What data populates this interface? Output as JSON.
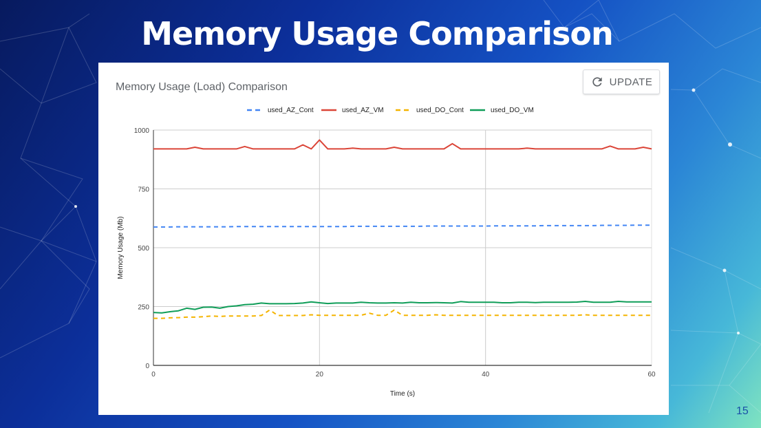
{
  "slide": {
    "title": "Memory Usage Comparison",
    "page_number": "15"
  },
  "card": {
    "update_label": "UPDATE",
    "update_icon": "refresh-icon"
  },
  "chart_data": {
    "type": "line",
    "title": "Memory Usage (Load) Comparison",
    "xlabel": "Time (s)",
    "ylabel": "Memory Usage (Mb)",
    "xlim": [
      0,
      60
    ],
    "ylim": [
      0,
      1000
    ],
    "xticks": [
      0,
      20,
      40,
      60
    ],
    "yticks": [
      0,
      250,
      500,
      750,
      1000
    ],
    "grid": true,
    "legend": "top",
    "x": [
      0,
      1,
      2,
      3,
      4,
      5,
      6,
      7,
      8,
      9,
      10,
      11,
      12,
      13,
      14,
      15,
      16,
      17,
      18,
      19,
      20,
      21,
      22,
      23,
      24,
      25,
      26,
      27,
      28,
      29,
      30,
      31,
      32,
      33,
      34,
      35,
      36,
      37,
      38,
      39,
      40,
      41,
      42,
      43,
      44,
      45,
      46,
      47,
      48,
      49,
      50,
      51,
      52,
      53,
      54,
      55,
      56,
      57,
      58,
      59,
      60
    ],
    "series": [
      {
        "name": "used_AZ_Cont",
        "color": "#4285f4",
        "dashed": true,
        "values": [
          588,
          588,
          588,
          589,
          589,
          589,
          589,
          589,
          589,
          589,
          590,
          590,
          590,
          590,
          590,
          590,
          590,
          590,
          590,
          590,
          590,
          590,
          590,
          590,
          591,
          591,
          591,
          591,
          591,
          591,
          591,
          591,
          591,
          592,
          592,
          592,
          592,
          592,
          592,
          592,
          592,
          593,
          593,
          593,
          593,
          593,
          593,
          594,
          594,
          594,
          594,
          594,
          594,
          594,
          595,
          595,
          595,
          595,
          596,
          596,
          596
        ]
      },
      {
        "name": "used_AZ_VM",
        "color": "#db4437",
        "dashed": false,
        "values": [
          920,
          920,
          920,
          920,
          920,
          927,
          920,
          920,
          920,
          920,
          920,
          930,
          920,
          920,
          920,
          920,
          920,
          920,
          937,
          920,
          958,
          920,
          920,
          920,
          923,
          920,
          920,
          920,
          920,
          927,
          920,
          920,
          920,
          920,
          920,
          920,
          942,
          920,
          920,
          920,
          920,
          920,
          920,
          920,
          920,
          923,
          920,
          920,
          920,
          920,
          920,
          920,
          920,
          920,
          920,
          932,
          920,
          920,
          920,
          927,
          920
        ]
      },
      {
        "name": "used_DO_Cont",
        "color": "#f4b400",
        "dashed": true,
        "values": [
          200,
          200,
          202,
          203,
          205,
          205,
          207,
          210,
          208,
          210,
          210,
          210,
          210,
          212,
          235,
          212,
          212,
          212,
          212,
          215,
          213,
          213,
          213,
          213,
          213,
          213,
          222,
          213,
          213,
          235,
          213,
          213,
          213,
          213,
          215,
          213,
          213,
          213,
          213,
          213,
          213,
          213,
          213,
          213,
          213,
          213,
          213,
          213,
          213,
          213,
          213,
          213,
          215,
          213,
          213,
          213,
          213,
          213,
          213,
          213,
          213
        ]
      },
      {
        "name": "used_DO_VM",
        "color": "#0f9d58",
        "dashed": false,
        "values": [
          225,
          223,
          228,
          232,
          243,
          238,
          247,
          248,
          243,
          250,
          253,
          258,
          260,
          265,
          262,
          262,
          262,
          263,
          265,
          270,
          266,
          263,
          265,
          265,
          265,
          268,
          266,
          265,
          265,
          266,
          265,
          268,
          266,
          266,
          267,
          266,
          265,
          271,
          268,
          268,
          268,
          268,
          266,
          266,
          268,
          268,
          267,
          268,
          268,
          268,
          268,
          269,
          272,
          268,
          268,
          268,
          272,
          270,
          270,
          270,
          270
        ]
      }
    ]
  }
}
